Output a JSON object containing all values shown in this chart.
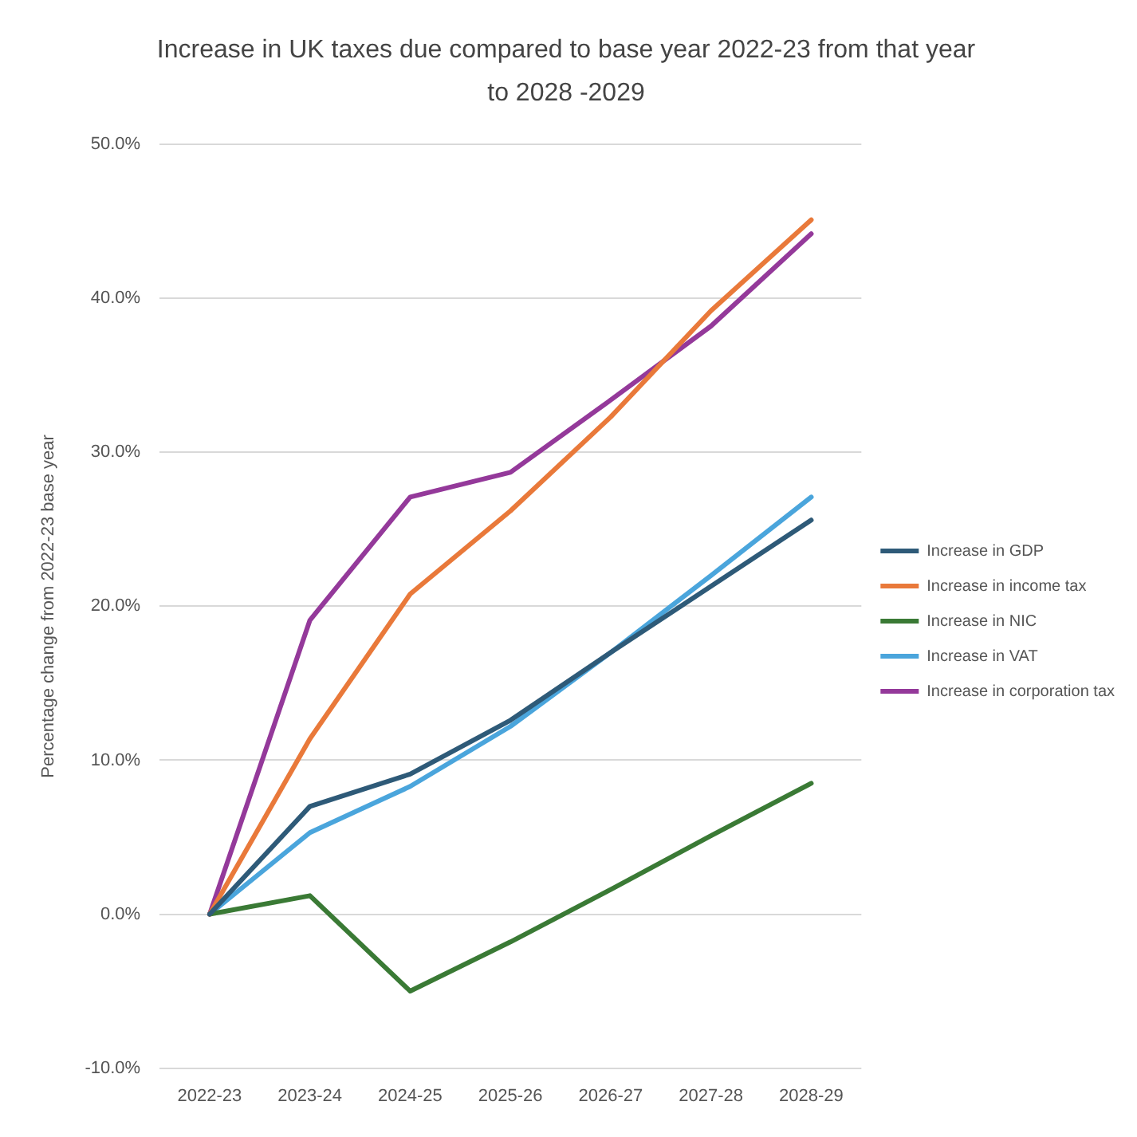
{
  "chart_data": {
    "type": "line",
    "title": "Increase in UK taxes due compared to base year 2022-23 from that year to 2028 -2029",
    "ylabel": "Percentage change from 2022-23 base year",
    "categories": [
      "2022-23",
      "2023-24",
      "2024-25",
      "2025-26",
      "2026-27",
      "2027-28",
      "2028-29"
    ],
    "series": [
      {
        "name": "Increase in GDP",
        "color": "#2e5a78",
        "values": [
          0,
          7.0,
          9.1,
          12.6,
          17.0,
          21.3,
          25.6
        ]
      },
      {
        "name": "Increase in income tax",
        "color": "#e9793a",
        "values": [
          0,
          11.4,
          20.8,
          26.2,
          32.3,
          39.2,
          45.1
        ]
      },
      {
        "name": "Increase in NIC",
        "color": "#3a7a35",
        "values": [
          0,
          1.2,
          -5.0,
          -1.8,
          1.6,
          5.1,
          8.5
        ]
      },
      {
        "name": "Increase in VAT",
        "color": "#4aa5dc",
        "values": [
          0,
          5.3,
          8.3,
          12.2,
          17.0,
          22.0,
          27.1
        ]
      },
      {
        "name": "Increase in corporation tax",
        "color": "#94399a",
        "values": [
          0,
          19.1,
          27.1,
          28.7,
          33.4,
          38.2,
          44.2
        ]
      }
    ],
    "ylim": [
      -10,
      50
    ],
    "yticks": [
      {
        "value": -10,
        "label": "-10.0%"
      },
      {
        "value": 0,
        "label": "0.0%"
      },
      {
        "value": 10,
        "label": "10.0%"
      },
      {
        "value": 20,
        "label": "20.0%"
      },
      {
        "value": 30,
        "label": "30.0%"
      },
      {
        "value": 40,
        "label": "40.0%"
      },
      {
        "value": 50,
        "label": "50.0%"
      }
    ],
    "grid": "y",
    "legend": "right",
    "marker": "none",
    "line_style": "solid"
  }
}
